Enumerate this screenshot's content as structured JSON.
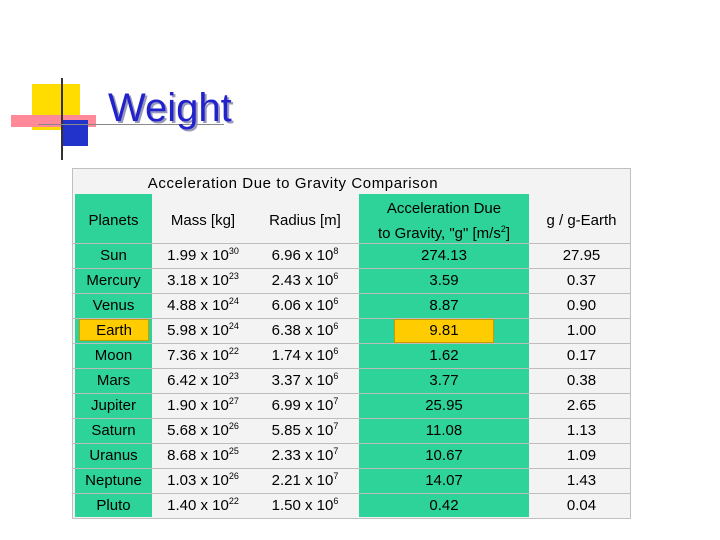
{
  "slide": {
    "title": "Weight",
    "colors": {
      "title": "#2222cc",
      "accent_yellow": "#ffdd00",
      "accent_pink": "#ff8899",
      "accent_blue": "#2233cc",
      "table_green": "#2ed39a",
      "highlight": "#ffcc00"
    }
  },
  "table": {
    "caption": "Acceleration Due to Gravity Comparison",
    "headers": {
      "planets": "Planets",
      "mass": "Mass [kg]",
      "radius": "Radius [m]",
      "accel_line1": "Acceleration Due",
      "accel_line2a": "to Gravity, \"g\" [m/s",
      "accel_sup": "2",
      "accel_line2b": "]",
      "ratio": "g / g-Earth"
    },
    "rows": [
      {
        "planet": "Sun",
        "mass_base": "1.99 x 10",
        "mass_exp": "30",
        "radius_base": "6.96 x 10",
        "radius_exp": "8",
        "accel": "274.13",
        "ratio": "27.95"
      },
      {
        "planet": "Mercury",
        "mass_base": "3.18 x 10",
        "mass_exp": "23",
        "radius_base": "2.43 x 10",
        "radius_exp": "6",
        "accel": "3.59",
        "ratio": "0.37"
      },
      {
        "planet": "Venus",
        "mass_base": "4.88 x 10",
        "mass_exp": "24",
        "radius_base": "6.06 x 10",
        "radius_exp": "6",
        "accel": "8.87",
        "ratio": "0.90"
      },
      {
        "planet": "Earth",
        "mass_base": "5.98 x 10",
        "mass_exp": "24",
        "radius_base": "6.38 x 10",
        "radius_exp": "6",
        "accel": "9.81",
        "ratio": "1.00"
      },
      {
        "planet": "Moon",
        "mass_base": "7.36 x 10",
        "mass_exp": "22",
        "radius_base": "1.74 x 10",
        "radius_exp": "6",
        "accel": "1.62",
        "ratio": "0.17"
      },
      {
        "planet": "Mars",
        "mass_base": "6.42 x 10",
        "mass_exp": "23",
        "radius_base": "3.37 x 10",
        "radius_exp": "6",
        "accel": "3.77",
        "ratio": "0.38"
      },
      {
        "planet": "Jupiter",
        "mass_base": "1.90 x 10",
        "mass_exp": "27",
        "radius_base": "6.99 x 10",
        "radius_exp": "7",
        "accel": "25.95",
        "ratio": "2.65"
      },
      {
        "planet": "Saturn",
        "mass_base": "5.68 x 10",
        "mass_exp": "26",
        "radius_base": "5.85 x 10",
        "radius_exp": "7",
        "accel": "11.08",
        "ratio": "1.13"
      },
      {
        "planet": "Uranus",
        "mass_base": "8.68 x 10",
        "mass_exp": "25",
        "radius_base": "2.33 x 10",
        "radius_exp": "7",
        "accel": "10.67",
        "ratio": "1.09"
      },
      {
        "planet": "Neptune",
        "mass_base": "1.03 x 10",
        "mass_exp": "26",
        "radius_base": "2.21 x 10",
        "radius_exp": "7",
        "accel": "14.07",
        "ratio": "1.43"
      },
      {
        "planet": "Pluto",
        "mass_base": "1.40 x 10",
        "mass_exp": "22",
        "radius_base": "1.50 x 10",
        "radius_exp": "6",
        "accel": "0.42",
        "ratio": "0.04"
      }
    ]
  }
}
